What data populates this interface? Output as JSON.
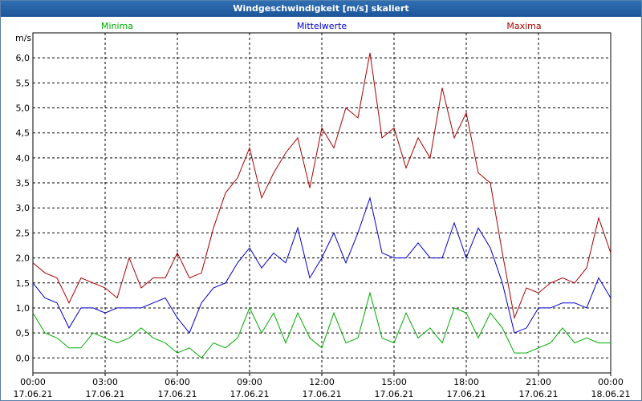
{
  "window": {
    "title": "Windgeschwindigkeit [m/s] skaliert"
  },
  "colors": {
    "minima": "#00aa00",
    "mittelwerte": "#0000cc",
    "maxima": "#aa0000",
    "grid": "#000000",
    "titlebar": "#1d5599"
  },
  "chart_data": {
    "type": "line",
    "title": "Windgeschwindigkeit [m/s] skaliert",
    "ylabel": "m/s",
    "ylim": [
      -0.3,
      6.5
    ],
    "yticks": [
      "6,0",
      "5,5",
      "5,0",
      "4,5",
      "4,0",
      "3,5",
      "3,0",
      "2,5",
      "2,0",
      "1,5",
      "1,0",
      "0,5",
      "0,0"
    ],
    "ytick_values": [
      6.0,
      5.5,
      5.0,
      4.5,
      4.0,
      3.5,
      3.0,
      2.5,
      2.0,
      1.5,
      1.0,
      0.5,
      0.0
    ],
    "xlim_hours": [
      0,
      24
    ],
    "xticks": [
      {
        "time": "00:00",
        "date": "17.06.21"
      },
      {
        "time": "03:00",
        "date": "17.06.21"
      },
      {
        "time": "06:00",
        "date": "17.06.21"
      },
      {
        "time": "09:00",
        "date": "17.06.21"
      },
      {
        "time": "12:00",
        "date": "17.06.21"
      },
      {
        "time": "15:00",
        "date": "17.06.21"
      },
      {
        "time": "18:00",
        "date": "17.06.21"
      },
      {
        "time": "21:00",
        "date": "17.06.21"
      },
      {
        "time": "00:00",
        "date": "18.06.21"
      }
    ],
    "grid": true,
    "legend_placement": "top",
    "series": [
      {
        "name": "Minima",
        "color": "#00aa00",
        "x_hours": [
          0.0,
          0.5,
          1.0,
          1.5,
          2.0,
          2.5,
          3.0,
          3.5,
          4.0,
          4.5,
          5.0,
          5.5,
          6.0,
          6.5,
          7.0,
          7.5,
          8.0,
          8.5,
          9.0,
          9.5,
          10.0,
          10.5,
          11.0,
          11.5,
          12.0,
          12.5,
          13.0,
          13.5,
          14.0,
          14.5,
          15.0,
          15.5,
          16.0,
          16.5,
          17.0,
          17.5,
          18.0,
          18.5,
          19.0,
          19.5,
          20.0,
          20.5,
          21.0,
          21.5,
          22.0,
          22.5,
          23.0,
          23.5,
          24.0
        ],
        "y": [
          0.9,
          0.5,
          0.4,
          0.2,
          0.2,
          0.5,
          0.4,
          0.3,
          0.4,
          0.6,
          0.4,
          0.3,
          0.1,
          0.2,
          0.0,
          0.3,
          0.2,
          0.4,
          1.0,
          0.5,
          0.9,
          0.3,
          0.9,
          0.4,
          0.2,
          0.9,
          0.3,
          0.4,
          1.3,
          0.4,
          0.3,
          0.9,
          0.4,
          0.6,
          0.3,
          1.0,
          0.9,
          0.4,
          0.9,
          0.6,
          0.1,
          0.1,
          0.2,
          0.3,
          0.6,
          0.3,
          0.4,
          0.3,
          0.3
        ]
      },
      {
        "name": "Mittelwerte",
        "color": "#0000cc",
        "x_hours": [
          0.0,
          0.5,
          1.0,
          1.5,
          2.0,
          2.5,
          3.0,
          3.5,
          4.0,
          4.5,
          5.0,
          5.5,
          6.0,
          6.5,
          7.0,
          7.5,
          8.0,
          8.5,
          9.0,
          9.5,
          10.0,
          10.5,
          11.0,
          11.5,
          12.0,
          12.5,
          13.0,
          13.5,
          14.0,
          14.5,
          15.0,
          15.5,
          16.0,
          16.5,
          17.0,
          17.5,
          18.0,
          18.5,
          19.0,
          19.5,
          20.0,
          20.5,
          21.0,
          21.5,
          22.0,
          22.5,
          23.0,
          23.5,
          24.0
        ],
        "y": [
          1.5,
          1.2,
          1.1,
          0.6,
          1.0,
          1.0,
          0.9,
          1.0,
          1.0,
          1.0,
          1.1,
          1.2,
          0.8,
          0.5,
          1.1,
          1.4,
          1.5,
          1.9,
          2.2,
          1.8,
          2.1,
          1.9,
          2.6,
          1.6,
          2.0,
          2.5,
          1.9,
          2.5,
          3.2,
          2.1,
          2.0,
          2.0,
          2.3,
          2.0,
          2.0,
          2.7,
          2.0,
          2.6,
          2.2,
          1.5,
          0.5,
          0.6,
          1.0,
          1.0,
          1.1,
          1.1,
          1.0,
          1.6,
          1.2
        ]
      },
      {
        "name": "Maxima",
        "color": "#aa0000",
        "x_hours": [
          0.0,
          0.5,
          1.0,
          1.5,
          2.0,
          2.5,
          3.0,
          3.5,
          4.0,
          4.5,
          5.0,
          5.5,
          6.0,
          6.5,
          7.0,
          7.5,
          8.0,
          8.5,
          9.0,
          9.5,
          10.0,
          10.5,
          11.0,
          11.5,
          12.0,
          12.5,
          13.0,
          13.5,
          14.0,
          14.5,
          15.0,
          15.5,
          16.0,
          16.5,
          17.0,
          17.5,
          18.0,
          18.5,
          19.0,
          19.5,
          20.0,
          20.5,
          21.0,
          21.5,
          22.0,
          22.5,
          23.0,
          23.5,
          24.0
        ],
        "y": [
          1.9,
          1.7,
          1.6,
          1.1,
          1.6,
          1.5,
          1.4,
          1.2,
          2.0,
          1.4,
          1.6,
          1.6,
          2.1,
          1.6,
          1.7,
          2.6,
          3.3,
          3.6,
          4.2,
          3.2,
          3.7,
          4.1,
          4.4,
          3.4,
          4.6,
          4.2,
          5.0,
          4.8,
          6.1,
          4.4,
          4.6,
          3.8,
          4.4,
          4.0,
          5.4,
          4.4,
          4.9,
          3.7,
          3.5,
          2.1,
          0.8,
          1.4,
          1.3,
          1.5,
          1.6,
          1.5,
          1.8,
          2.8,
          2.1
        ]
      }
    ]
  }
}
